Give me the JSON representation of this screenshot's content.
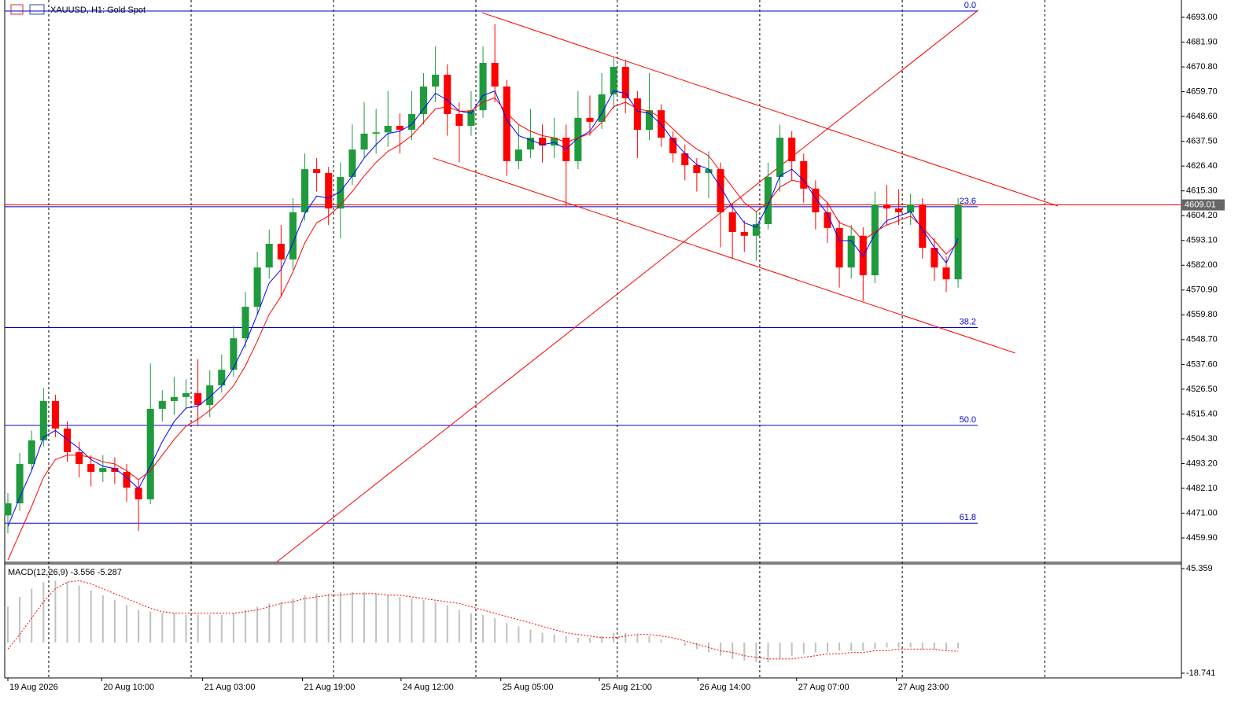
{
  "chart_data": [
    {
      "type": "candlestick",
      "title": "XAUUSD, H1:  Gold Spot",
      "xlim": [
        -0.265,
        98.8
      ],
      "xticks": [
        {
          "value": 0,
          "label": "19 Aug 2026"
        },
        {
          "value": 7.9,
          "label": "20 Aug 10:00"
        },
        {
          "value": 16.4,
          "label": "21 Aug 03:00"
        },
        {
          "value": 24.8,
          "label": "21 Aug 19:00"
        },
        {
          "value": 33.1,
          "label": "24 Aug 12:00"
        },
        {
          "value": 41.5,
          "label": "25 Aug 05:00"
        },
        {
          "value": 49.8,
          "label": "25 Aug 21:00"
        },
        {
          "value": 58.1,
          "label": "26 Aug 14:00"
        },
        {
          "value": 66.4,
          "label": "27 Aug 07:00"
        },
        {
          "value": 74.8,
          "label": "27 Aug 23:00"
        }
      ],
      "vgrid": [
        3.44,
        15.43,
        27.42,
        39.4,
        51.3,
        63.3,
        75.3,
        87.3
      ],
      "ylim": [
        4449.0,
        4700.75
      ],
      "yticks": [
        {
          "value": 4693.0,
          "label": "4693.00"
        },
        {
          "value": 4681.9,
          "label": "4681.90"
        },
        {
          "value": 4670.8,
          "label": "4670.80"
        },
        {
          "value": 4659.7,
          "label": "4659.70"
        },
        {
          "value": 4648.6,
          "label": "4648.60"
        },
        {
          "value": 4637.5,
          "label": "4637.50"
        },
        {
          "value": 4626.4,
          "label": "4626.40"
        },
        {
          "value": 4615.3,
          "label": "4615.30"
        },
        {
          "value": 4604.2,
          "label": "4604.20"
        },
        {
          "value": 4593.1,
          "label": "4593.10"
        },
        {
          "value": 4582.0,
          "label": "4582.00"
        },
        {
          "value": 4570.9,
          "label": "4570.90"
        },
        {
          "value": 4559.8,
          "label": "4559.80"
        },
        {
          "value": 4548.7,
          "label": "4548.70"
        },
        {
          "value": 4537.6,
          "label": "4537.60"
        },
        {
          "value": 4526.5,
          "label": "4526.50"
        },
        {
          "value": 4515.4,
          "label": "4515.40"
        },
        {
          "value": 4504.3,
          "label": "4504.30"
        },
        {
          "value": 4493.2,
          "label": "4493.20"
        },
        {
          "value": 4482.1,
          "label": "4482.10"
        },
        {
          "value": 4471.0,
          "label": "4471.00"
        },
        {
          "value": 4459.9,
          "label": "4459.90"
        }
      ],
      "open": [
        4470.0,
        4475.4,
        4493.0,
        4503.6,
        4521.2,
        4508.9,
        4498.3,
        4493.0,
        4489.5,
        4491.2,
        4489.5,
        4482.4,
        4477.2,
        4517.7,
        4521.2,
        4523.0,
        4524.7,
        4519.4,
        4528.2,
        4535.2,
        4549.3,
        4563.4,
        4581.0,
        4591.6,
        4584.6,
        4605.7,
        4625.0,
        4623.3,
        4607.4,
        4621.5,
        4633.8,
        4640.9,
        4641.5,
        4644.4,
        4642.6,
        4649.7,
        4662.0,
        4667.3,
        4649.7,
        4644.4,
        4651.4,
        4672.6,
        4662.0,
        4628.6,
        4633.8,
        4639.1,
        4635.6,
        4639.1,
        4628.6,
        4648.0,
        4646.2,
        4658.5,
        4670.8,
        4656.7,
        4642.6,
        4651.4,
        4639.1,
        4632.1,
        4626.8,
        4623.3,
        4625.0,
        4605.7,
        4596.9,
        4595.2,
        4600.4,
        4621.5,
        4639.1,
        4628.6,
        4616.3,
        4605.7,
        4598.7,
        4581.0,
        4595.2,
        4577.5,
        4609.2,
        4607.4,
        4605.7,
        4609.2,
        4589.8,
        4581.0,
        4575.7
      ],
      "high": [
        4480,
        4498,
        4508,
        4527,
        4524,
        4512,
        4503,
        4497,
        4497,
        4496,
        4493,
        4486,
        4538,
        4526,
        4532,
        4531,
        4540,
        4535,
        4542,
        4555,
        4570,
        4588,
        4598,
        4600,
        4612,
        4632,
        4630,
        4626,
        4628,
        4645,
        4655,
        4652,
        4660,
        4650,
        4660,
        4668,
        4680,
        4672,
        4655,
        4660,
        4680,
        4690,
        4665,
        4645,
        4652,
        4645,
        4648,
        4645,
        4660,
        4658,
        4668,
        4675,
        4674,
        4660,
        4668,
        4654,
        4642,
        4636,
        4630,
        4633,
        4628,
        4610,
        4602,
        4606,
        4628,
        4645,
        4642,
        4632,
        4620,
        4610,
        4602,
        4600,
        4599,
        4615,
        4618,
        4616,
        4614,
        4612,
        4594,
        4586,
        4612
      ],
      "low": [
        4462,
        4472,
        4490,
        4501,
        4505,
        4494,
        4487,
        4483,
        4485,
        4484,
        4476,
        4463,
        4475,
        4512,
        4515,
        4518,
        4510,
        4514,
        4525,
        4532,
        4545,
        4560,
        4576,
        4568,
        4580,
        4602,
        4615,
        4600,
        4594,
        4618,
        4630,
        4632,
        4635,
        4632,
        4638,
        4645,
        4655,
        4640,
        4628,
        4640,
        4648,
        4655,
        4622,
        4625,
        4630,
        4628,
        4630,
        4608,
        4625,
        4640,
        4643,
        4652,
        4650,
        4630,
        4638,
        4635,
        4628,
        4620,
        4615,
        4612,
        4590,
        4585,
        4588,
        4584,
        4598,
        4615,
        4620,
        4610,
        4598,
        4592,
        4572,
        4576,
        4566,
        4574,
        4600,
        4600,
        4600,
        4585,
        4575,
        4570,
        4572
      ],
      "close": [
        4475.4,
        4493.0,
        4503.6,
        4521.2,
        4508.9,
        4498.3,
        4493.0,
        4489.5,
        4491.2,
        4489.5,
        4482.4,
        4477.2,
        4517.7,
        4521.2,
        4523.0,
        4524.7,
        4519.4,
        4528.2,
        4535.2,
        4549.3,
        4563.4,
        4581.0,
        4591.6,
        4584.6,
        4605.7,
        4625.0,
        4623.3,
        4607.4,
        4621.5,
        4633.8,
        4640.9,
        4641.5,
        4644.4,
        4642.6,
        4649.7,
        4662.0,
        4667.3,
        4649.7,
        4644.4,
        4651.4,
        4672.6,
        4662.0,
        4628.6,
        4633.8,
        4639.1,
        4635.6,
        4639.1,
        4628.6,
        4648.0,
        4646.2,
        4658.5,
        4670.8,
        4656.7,
        4642.6,
        4651.4,
        4639.1,
        4632.1,
        4626.8,
        4623.3,
        4625.0,
        4605.7,
        4596.9,
        4595.2,
        4600.4,
        4621.5,
        4639.1,
        4628.6,
        4616.3,
        4605.7,
        4598.7,
        4581.0,
        4595.2,
        4577.5,
        4609.2,
        4607.4,
        4605.7,
        4609.2,
        4589.8,
        4581.0,
        4575.7,
        4609.01
      ],
      "up_color": "#1f9a3c",
      "down_color": "#ff0000",
      "moving_averages": [
        {
          "color": "#0000ff",
          "values": [
            4465,
            4478,
            4490,
            4505,
            4508,
            4504,
            4500,
            4495,
            4492,
            4491,
            4487,
            4482,
            4492,
            4503,
            4512,
            4518,
            4519,
            4523,
            4528,
            4536,
            4547,
            4560,
            4574,
            4580,
            4592,
            4605,
            4613,
            4612,
            4615,
            4622,
            4630,
            4636,
            4641,
            4642,
            4645,
            4652,
            4659,
            4656,
            4651,
            4650,
            4658,
            4660,
            4647,
            4640,
            4638,
            4636,
            4637,
            4634,
            4639,
            4642,
            4650,
            4660,
            4659,
            4651,
            4650,
            4645,
            4638,
            4632,
            4627,
            4625,
            4617,
            4608,
            4601,
            4599,
            4609,
            4622,
            4625,
            4620,
            4612,
            4605,
            4593,
            4593,
            4586,
            4596,
            4602,
            4604,
            4606,
            4598,
            4590,
            4583,
            4594
          ]
        },
        {
          "color": "#ff0000",
          "values": [
            4450,
            4462,
            4474,
            4487,
            4495,
            4497,
            4497,
            4496,
            4494,
            4493,
            4490,
            4486,
            4490,
            4497,
            4504,
            4510,
            4513,
            4517,
            4522,
            4528,
            4537,
            4548,
            4560,
            4568,
            4579,
            4592,
            4601,
            4604,
            4609,
            4615,
            4622,
            4628,
            4633,
            4636,
            4640,
            4646,
            4652,
            4653,
            4651,
            4651,
            4655,
            4657,
            4650,
            4645,
            4642,
            4640,
            4639,
            4637,
            4639,
            4641,
            4646,
            4653,
            4655,
            4652,
            4651,
            4648,
            4643,
            4638,
            4634,
            4631,
            4624,
            4617,
            4610,
            4606,
            4610,
            4617,
            4620,
            4619,
            4615,
            4610,
            4601,
            4599,
            4593,
            4597,
            4600,
            4602,
            4604,
            4599,
            4593,
            4587,
            4592
          ]
        }
      ],
      "fib_color": "#0000cc",
      "fib_levels": [
        {
          "label": "0.0",
          "price": 4695.8
        },
        {
          "label": "23.6",
          "price": 4608.2
        },
        {
          "label": "38.2",
          "price": 4554.1
        },
        {
          "label": "50.0",
          "price": 4510.3
        },
        {
          "label": "61.8",
          "price": 4466.5
        }
      ],
      "trend_color": "#ff0000",
      "trendlines": [
        {
          "x": [
            39.9,
            88.4
          ],
          "y": [
            4695.1,
            4608.5
          ]
        },
        {
          "x": [
            35.8,
            84.8
          ],
          "y": [
            4630.0,
            4542.7
          ]
        },
        {
          "x": [
            22.6,
            81.7
          ],
          "y": [
            4449.0,
            4696.2
          ]
        }
      ],
      "last_price": 4609.01,
      "last_price_color": "#ff0000"
    },
    {
      "type": "macd",
      "title": "MACD(12,26,9) -3.556 -5.287",
      "ylim": [
        -21.63,
        48.25
      ],
      "yticks": [
        45.359,
        -18.741
      ],
      "histogram": {
        "color": "#c0c0c0",
        "values": [
          22,
          28,
          33,
          37,
          38,
          37,
          35,
          32,
          29,
          26,
          23,
          20,
          19,
          18,
          18,
          17,
          17,
          17,
          17,
          18,
          20,
          22,
          24,
          25,
          27,
          29,
          30,
          30,
          31,
          31,
          31,
          30,
          29,
          28,
          27,
          26,
          25,
          23,
          20,
          18,
          17,
          15,
          12,
          10,
          8,
          6,
          5,
          4,
          3,
          3,
          4,
          6,
          6,
          5,
          4,
          2,
          0,
          -2,
          -4,
          -6,
          -8,
          -10,
          -11,
          -12,
          -12,
          -10,
          -8,
          -7,
          -6,
          -6,
          -5,
          -5,
          -5,
          -4,
          -3,
          -3,
          -3,
          -4,
          -4,
          -5,
          -3.556
        ]
      },
      "signal": {
        "color": "#ff0000",
        "values": [
          -4,
          5,
          15,
          25,
          33,
          37,
          38,
          36,
          33,
          30,
          27,
          24,
          21,
          19,
          18,
          18,
          18,
          18,
          18,
          18,
          19,
          20,
          22,
          24,
          25,
          27,
          28,
          29,
          29,
          30,
          30,
          30,
          29,
          29,
          28,
          27,
          26,
          25,
          24,
          22,
          20,
          18,
          16,
          14,
          12,
          10,
          8,
          6,
          5,
          4,
          3,
          3,
          4,
          5,
          5,
          4,
          3,
          1,
          -1,
          -3,
          -5,
          -6,
          -8,
          -9,
          -10,
          -10,
          -10,
          -9,
          -8,
          -7,
          -7,
          -6,
          -6,
          -5,
          -5,
          -4,
          -4,
          -4,
          -4,
          -5,
          -5.287
        ]
      }
    }
  ]
}
